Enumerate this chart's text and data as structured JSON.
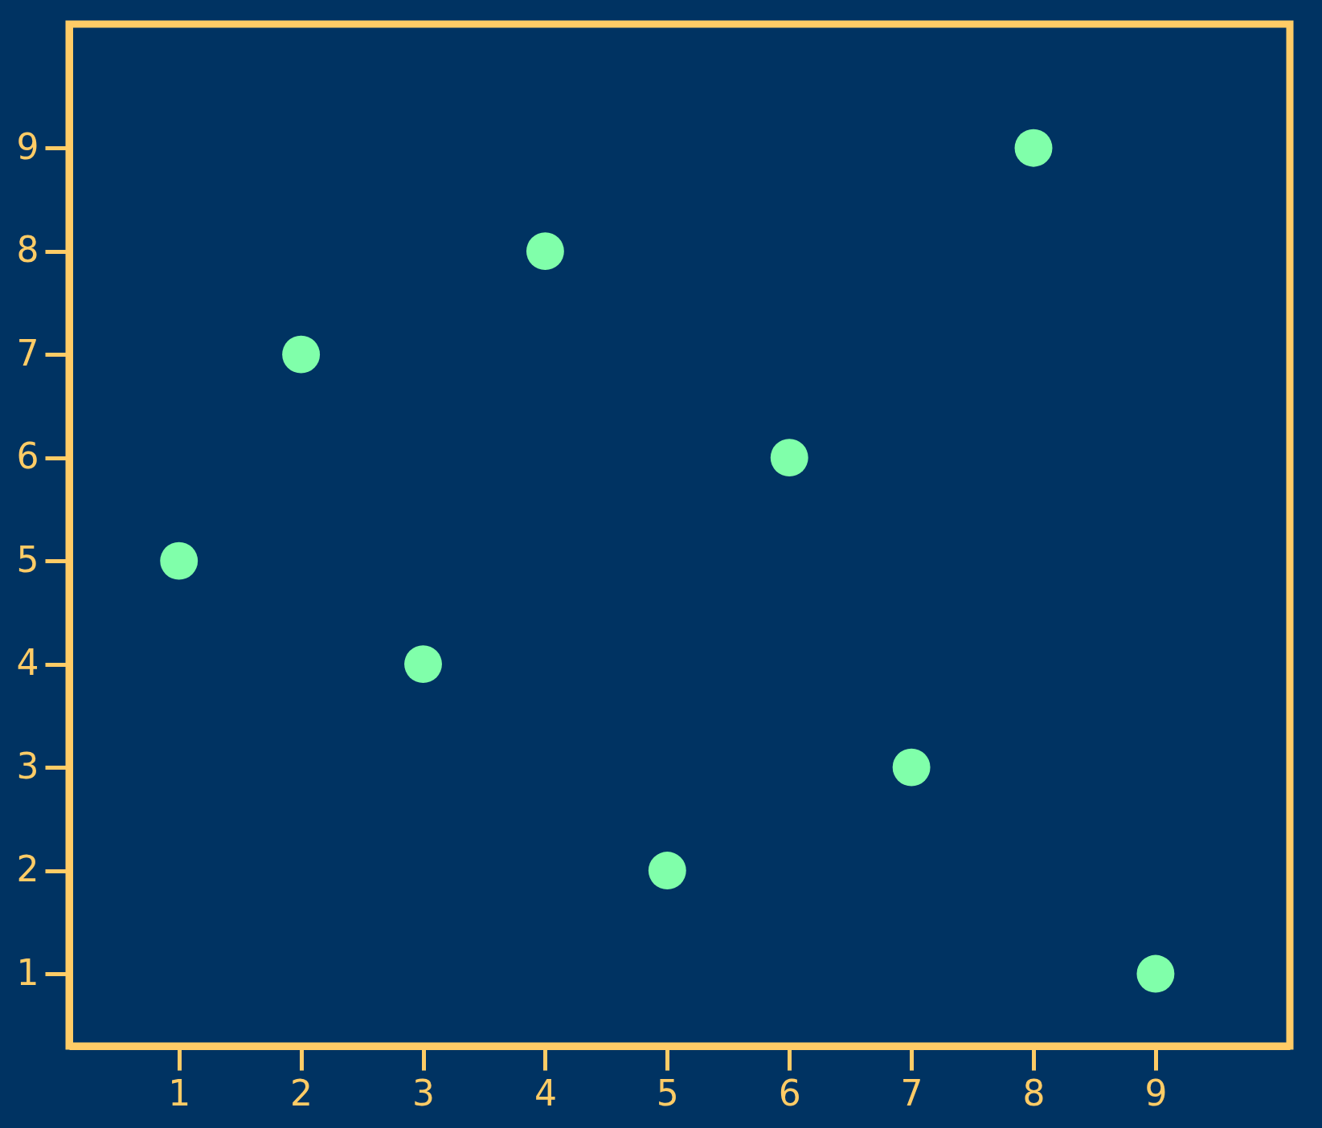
{
  "chart_data": {
    "type": "scatter",
    "x": [
      1,
      2,
      3,
      4,
      5,
      6,
      7,
      8,
      9
    ],
    "series": [
      {
        "color": "#80ffaa",
        "values": [
          5,
          7,
          4,
          8,
          2,
          6,
          3,
          9,
          1
        ]
      }
    ],
    "xlim": [
      0.1,
      10.1
    ],
    "ylim": [
      0.3,
      10.2
    ],
    "xticks": [
      1,
      2,
      3,
      4,
      5,
      6,
      7,
      8,
      9
    ],
    "yticks": [
      1,
      2,
      3,
      4,
      5,
      6,
      7,
      8,
      9
    ],
    "grid": false,
    "marker": "circle"
  }
}
